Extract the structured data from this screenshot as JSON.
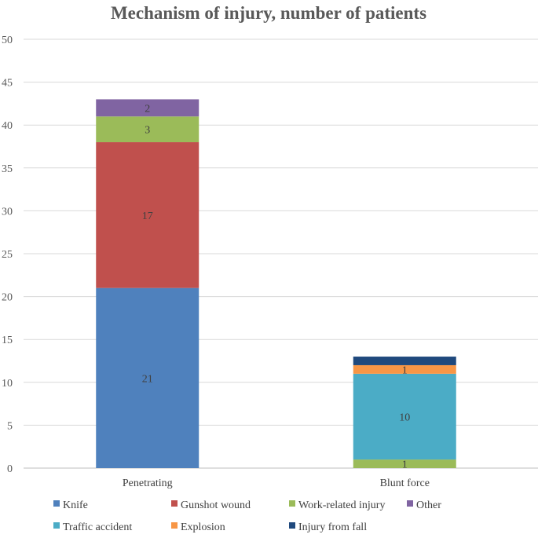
{
  "chart_data": {
    "type": "bar",
    "stacked": true,
    "title": "Mechanism of injury, number of patients",
    "xlabel": "",
    "ylabel": "",
    "ylim": [
      0,
      50
    ],
    "yticks": [
      0,
      5,
      10,
      15,
      20,
      25,
      30,
      35,
      40,
      45,
      50
    ],
    "grid": true,
    "legend_position": "bottom",
    "categories": [
      "Penetrating",
      "Blunt force"
    ],
    "series": [
      {
        "name": "Knife",
        "color": "#4f81bd",
        "values": [
          21,
          0
        ],
        "labels": [
          "21",
          ""
        ]
      },
      {
        "name": "Gunshot wound",
        "color": "#c0504d",
        "values": [
          17,
          0
        ],
        "labels": [
          "17",
          ""
        ]
      },
      {
        "name": "Work-related injury",
        "color": "#9bbb59",
        "values": [
          3,
          1
        ],
        "labels": [
          "3",
          "1"
        ]
      },
      {
        "name": "Other",
        "color": "#8064a2",
        "values": [
          2,
          0
        ],
        "labels": [
          "2",
          ""
        ]
      },
      {
        "name": "Traffic accident",
        "color": "#4bacc6",
        "values": [
          0,
          10
        ],
        "labels": [
          "",
          "10"
        ]
      },
      {
        "name": "Explosion",
        "color": "#f79646",
        "values": [
          0,
          1
        ],
        "labels": [
          "",
          "1"
        ]
      },
      {
        "name": "Injury from fall",
        "color": "#1f497d",
        "values": [
          0,
          1
        ],
        "labels": [
          "",
          ""
        ]
      }
    ],
    "legend_order": [
      [
        "Knife",
        "Gunshot wound",
        "Work-related injury",
        "Other"
      ],
      [
        "Traffic accident",
        "Explosion",
        "Injury from fall"
      ]
    ]
  }
}
